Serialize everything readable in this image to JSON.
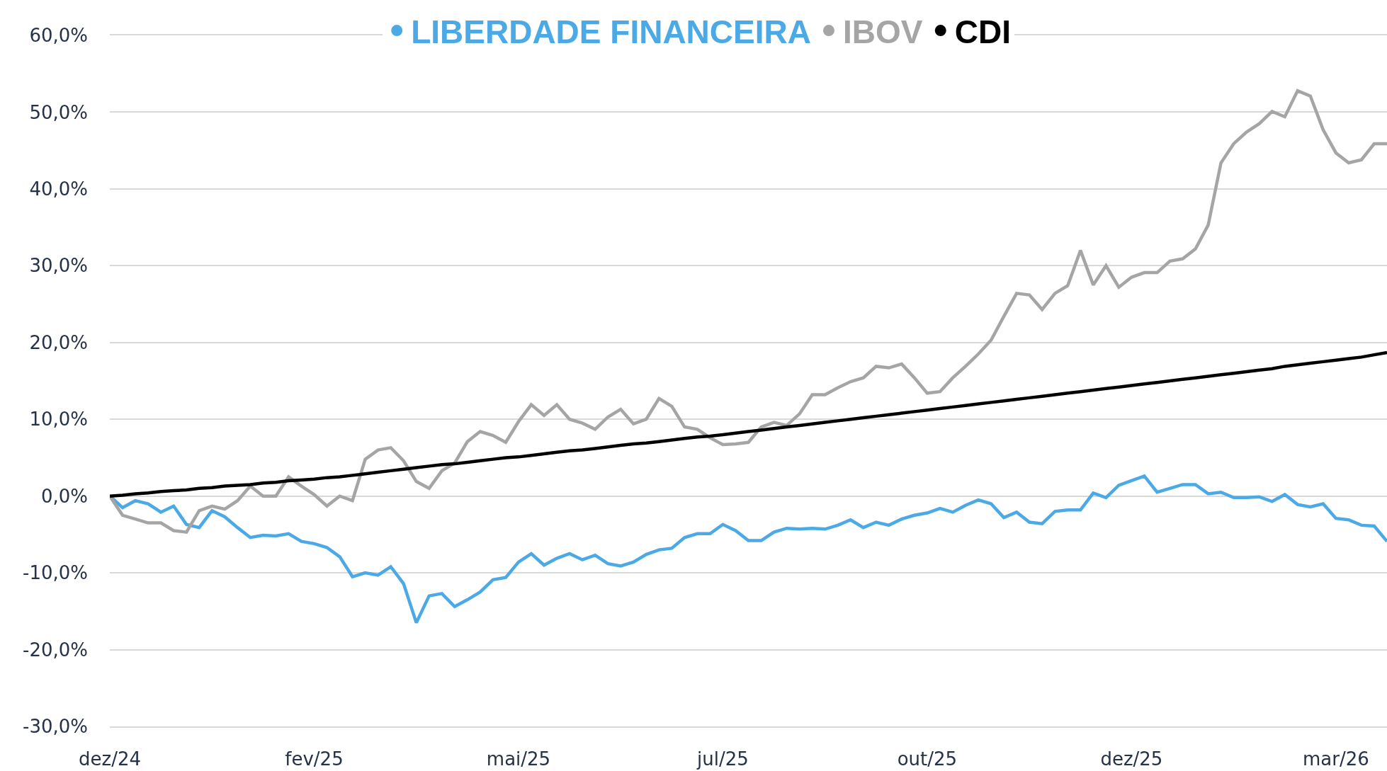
{
  "chart_data": {
    "type": "line",
    "categories": [
      "dez/24",
      null,
      null,
      null,
      null,
      null,
      null,
      null,
      null,
      null,
      null,
      null,
      null,
      null,
      null,
      null,
      "fev/25",
      null,
      null,
      null,
      null,
      null,
      null,
      null,
      null,
      null,
      null,
      null,
      null,
      null,
      null,
      null,
      "mai/25",
      null,
      null,
      null,
      null,
      null,
      null,
      null,
      null,
      null,
      null,
      null,
      null,
      null,
      null,
      null,
      "jul/25",
      null,
      null,
      null,
      null,
      null,
      null,
      null,
      null,
      null,
      null,
      null,
      null,
      null,
      null,
      null,
      "out/25",
      null,
      null,
      null,
      null,
      null,
      null,
      null,
      null,
      null,
      null,
      null,
      null,
      null,
      null,
      null,
      "dez/25",
      null,
      null,
      null,
      null,
      null,
      null,
      null,
      null,
      null,
      null,
      null,
      null,
      null,
      null,
      null,
      "mar/26",
      null,
      null,
      null,
      null
    ],
    "series": [
      {
        "name": "LIBERDADE FINANCEIRA",
        "color": "#4ba9e6",
        "values": [
          0.0,
          -1.5,
          -0.6,
          -1.0,
          -2.1,
          -1.3,
          -3.7,
          -4.1,
          -1.9,
          -2.7,
          -4.1,
          -5.4,
          -5.1,
          -5.2,
          -4.9,
          -5.9,
          -6.2,
          -6.7,
          -7.9,
          -10.5,
          -10.0,
          -10.3,
          -9.2,
          -11.4,
          -16.5,
          -13.0,
          -12.7,
          -14.4,
          -13.5,
          -12.5,
          -10.9,
          -10.6,
          -8.6,
          -7.5,
          -9.0,
          -8.1,
          -7.5,
          -8.3,
          -7.7,
          -8.8,
          -9.1,
          -8.6,
          -7.6,
          -7.0,
          -6.8,
          -5.4,
          -4.9,
          -4.9,
          -3.7,
          -4.5,
          -5.8,
          -5.8,
          -4.7,
          -4.2,
          -4.3,
          -4.2,
          -4.3,
          -3.8,
          -3.1,
          -4.1,
          -3.4,
          -3.8,
          -3.0,
          -2.5,
          -2.2,
          -1.6,
          -2.1,
          -1.2,
          -0.5,
          -1.0,
          -2.8,
          -2.1,
          -3.4,
          -3.6,
          -2.0,
          -1.8,
          -1.8,
          0.4,
          -0.2,
          1.4,
          2.0,
          2.6,
          0.5,
          1.0,
          1.5,
          1.5,
          0.3,
          0.5,
          -0.2,
          -0.2,
          -0.1,
          -0.7,
          0.2,
          -1.1,
          -1.4,
          -1.0,
          -2.9,
          -3.1,
          -3.8,
          -3.9,
          -5.9
        ]
      },
      {
        "name": "IBOV",
        "color": "#a5a5a5",
        "values": [
          0.0,
          -2.5,
          -3.0,
          -3.5,
          -3.5,
          -4.5,
          -4.7,
          -1.9,
          -1.3,
          -1.7,
          -0.6,
          1.3,
          0.0,
          0.0,
          2.5,
          1.3,
          0.2,
          -1.3,
          0.0,
          -0.6,
          4.8,
          6.0,
          6.3,
          4.6,
          1.9,
          1.0,
          3.3,
          4.3,
          7.1,
          8.4,
          7.9,
          7.0,
          9.7,
          11.9,
          10.5,
          11.9,
          10.0,
          9.5,
          8.7,
          10.3,
          11.3,
          9.4,
          10.0,
          12.7,
          11.7,
          9.0,
          8.7,
          7.6,
          6.7,
          6.8,
          7.0,
          9.0,
          9.6,
          9.2,
          10.7,
          13.2,
          13.2,
          14.1,
          14.9,
          15.4,
          16.9,
          16.7,
          17.2,
          15.4,
          13.4,
          13.6,
          15.4,
          16.9,
          18.5,
          20.3,
          23.4,
          26.4,
          26.2,
          24.3,
          26.4,
          27.4,
          32.0,
          27.5,
          30.0,
          27.2,
          28.5,
          29.1,
          29.1,
          30.6,
          30.9,
          32.2,
          35.3,
          43.4,
          45.9,
          47.4,
          48.5,
          50.1,
          49.4,
          52.8,
          52.1,
          47.7,
          44.7,
          43.4,
          43.8,
          45.9,
          45.9
        ]
      },
      {
        "name": "CDI",
        "color": "#000000",
        "values": [
          0.0,
          0.1,
          0.3,
          0.4,
          0.6,
          0.7,
          0.8,
          1.0,
          1.1,
          1.3,
          1.4,
          1.5,
          1.7,
          1.8,
          2.0,
          2.1,
          2.2,
          2.4,
          2.5,
          2.7,
          2.9,
          3.1,
          3.3,
          3.5,
          3.7,
          3.9,
          4.1,
          4.2,
          4.4,
          4.6,
          4.8,
          5.0,
          5.1,
          5.3,
          5.5,
          5.7,
          5.9,
          6.0,
          6.2,
          6.4,
          6.6,
          6.8,
          6.9,
          7.1,
          7.3,
          7.5,
          7.7,
          7.8,
          8.0,
          8.2,
          8.4,
          8.6,
          8.8,
          9.0,
          9.2,
          9.4,
          9.6,
          9.8,
          10.0,
          10.2,
          10.4,
          10.6,
          10.8,
          11.0,
          11.2,
          11.4,
          11.6,
          11.8,
          12.0,
          12.2,
          12.4,
          12.6,
          12.8,
          13.0,
          13.2,
          13.4,
          13.6,
          13.8,
          14.0,
          14.2,
          14.4,
          14.6,
          14.8,
          15.0,
          15.2,
          15.4,
          15.6,
          15.8,
          16.0,
          16.2,
          16.4,
          16.6,
          16.9,
          17.1,
          17.3,
          17.5,
          17.7,
          17.9,
          18.1,
          18.4,
          18.7
        ]
      }
    ],
    "ylim": [
      -30,
      60
    ],
    "yticks": [
      {
        "value": -30,
        "label": "-30,0%"
      },
      {
        "value": -20,
        "label": "-20,0%"
      },
      {
        "value": -10,
        "label": "-10,0%"
      },
      {
        "value": 0,
        "label": "0,0%"
      },
      {
        "value": 10,
        "label": "10,0%"
      },
      {
        "value": 20,
        "label": "20,0%"
      },
      {
        "value": 30,
        "label": "30,0%"
      },
      {
        "value": 40,
        "label": "40,0%"
      },
      {
        "value": 50,
        "label": "50,0%"
      },
      {
        "value": 60,
        "label": "60,0%"
      }
    ],
    "grid": "y",
    "legend": "top"
  }
}
